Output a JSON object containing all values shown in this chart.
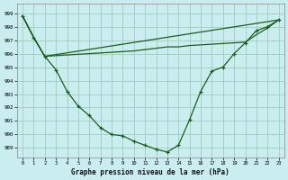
{
  "title": "Graphe pression niveau de la mer (hPa)",
  "bg_color": "#caeef0",
  "grid_color": "#a0ccbb",
  "line_color": "#1a5e1a",
  "xlim": [
    -0.5,
    23.5
  ],
  "ylim": [
    988.3,
    999.7
  ],
  "xticks": [
    0,
    1,
    2,
    3,
    4,
    5,
    6,
    7,
    8,
    9,
    10,
    11,
    12,
    13,
    14,
    15,
    16,
    17,
    18,
    19,
    20,
    21,
    22,
    23
  ],
  "yticks": [
    989,
    990,
    991,
    992,
    993,
    994,
    995,
    996,
    997,
    998,
    999
  ],
  "series1_y": [
    998.8,
    997.2,
    995.8,
    994.8,
    993.2,
    992.1,
    991.4,
    990.5,
    990.0,
    989.9,
    989.5,
    989.2,
    988.9,
    988.7,
    989.2,
    991.1,
    993.2,
    994.7,
    995.0,
    996.0,
    996.8,
    997.7,
    998.0,
    998.5
  ],
  "series2_x": [
    0,
    1,
    2,
    23
  ],
  "series2_y": [
    998.8,
    997.2,
    995.8,
    998.5
  ],
  "series3_x": [
    0,
    1,
    2,
    3,
    4,
    5,
    6,
    7,
    8,
    9,
    10,
    11,
    12,
    13,
    14,
    15,
    16,
    17,
    18,
    19,
    20,
    21,
    22,
    23
  ],
  "series3_y": [
    998.8,
    997.2,
    995.8,
    995.85,
    995.9,
    995.95,
    996.0,
    996.05,
    996.1,
    996.15,
    996.2,
    996.3,
    996.4,
    996.5,
    996.5,
    996.6,
    996.65,
    996.7,
    996.75,
    996.8,
    996.85,
    997.4,
    997.9,
    998.5
  ]
}
